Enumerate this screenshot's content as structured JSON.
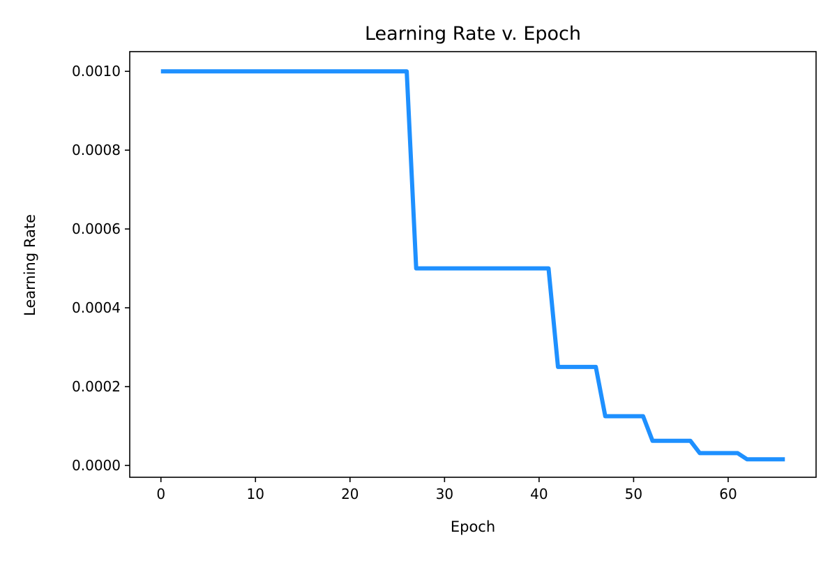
{
  "chart_data": {
    "type": "line",
    "title": "Learning Rate v. Epoch",
    "xlabel": "Epoch",
    "ylabel": "Learning Rate",
    "xlim": [
      -3.3,
      69.3
    ],
    "ylim": [
      -3e-05,
      0.00105
    ],
    "xticks": [
      0,
      10,
      20,
      30,
      40,
      50,
      60
    ],
    "xtick_labels": [
      "0",
      "10",
      "20",
      "30",
      "40",
      "50",
      "60"
    ],
    "yticks": [
      0.0,
      0.0002,
      0.0004,
      0.0006,
      0.0008,
      0.001
    ],
    "ytick_labels": [
      "0.0000",
      "0.0002",
      "0.0004",
      "0.0006",
      "0.0008",
      "0.0010"
    ],
    "grid": false,
    "series": [
      {
        "color": "#1e90ff",
        "x": [
          0,
          26,
          27,
          41,
          42,
          46,
          47,
          51,
          52,
          56,
          57,
          61,
          62,
          66
        ],
        "y": [
          0.001,
          0.001,
          0.0005,
          0.0005,
          0.00025,
          0.00025,
          0.000125,
          0.000125,
          6.25e-05,
          6.25e-05,
          3.125e-05,
          3.125e-05,
          1.5625e-05,
          1.5625e-05
        ]
      }
    ]
  }
}
